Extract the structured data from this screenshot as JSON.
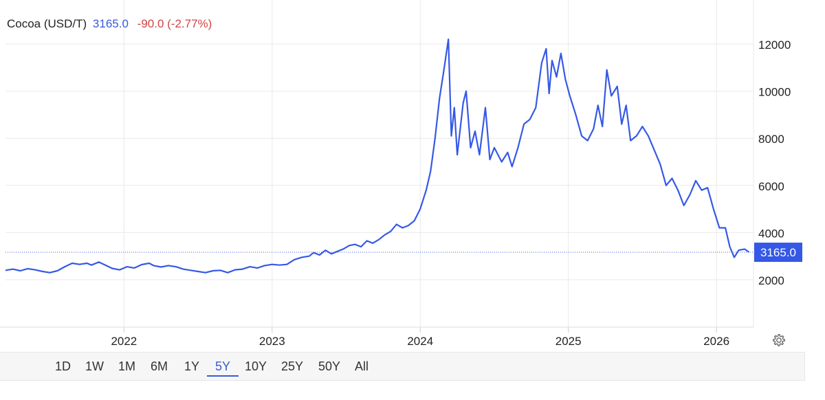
{
  "header": {
    "name": "Cocoa (USD/T)",
    "price": "3165.0",
    "change": "-90.0 (-2.77%)"
  },
  "last_price_label": "3165.0",
  "ranges": [
    "1D",
    "1W",
    "1M",
    "6M",
    "1Y",
    "5Y",
    "10Y",
    "25Y",
    "50Y",
    "All"
  ],
  "active_range": "5Y",
  "colors": {
    "line": "#3558e6",
    "price_text": "#3a5ad9",
    "change_text": "#d24444",
    "price_tag_bg": "#3558e6",
    "grid": "#e9e9e9"
  },
  "icons": {
    "settings": "gear-icon"
  },
  "chart_data": {
    "type": "line",
    "title": "Cocoa (USD/T)",
    "xlabel": "",
    "ylabel": "",
    "xlim": [
      2021.2,
      2026.25
    ],
    "ylim": [
      0,
      13000
    ],
    "x_ticks": [
      "2022",
      "2023",
      "2024",
      "2025",
      "2026"
    ],
    "y_ticks": [
      "2000",
      "4000",
      "6000",
      "8000",
      "10000",
      "12000"
    ],
    "grid": true,
    "last_value": 3165.0,
    "series": [
      {
        "values": [
          [
            2021.2,
            2400
          ],
          [
            2021.25,
            2450
          ],
          [
            2021.3,
            2380
          ],
          [
            2021.35,
            2470
          ],
          [
            2021.4,
            2420
          ],
          [
            2021.45,
            2350
          ],
          [
            2021.5,
            2300
          ],
          [
            2021.55,
            2380
          ],
          [
            2021.6,
            2550
          ],
          [
            2021.65,
            2700
          ],
          [
            2021.7,
            2650
          ],
          [
            2021.75,
            2700
          ],
          [
            2021.78,
            2620
          ],
          [
            2021.83,
            2750
          ],
          [
            2021.88,
            2600
          ],
          [
            2021.92,
            2480
          ],
          [
            2021.97,
            2420
          ],
          [
            2022.02,
            2550
          ],
          [
            2022.07,
            2500
          ],
          [
            2022.12,
            2640
          ],
          [
            2022.17,
            2700
          ],
          [
            2022.2,
            2600
          ],
          [
            2022.25,
            2540
          ],
          [
            2022.3,
            2600
          ],
          [
            2022.35,
            2550
          ],
          [
            2022.4,
            2450
          ],
          [
            2022.45,
            2400
          ],
          [
            2022.5,
            2350
          ],
          [
            2022.55,
            2300
          ],
          [
            2022.6,
            2380
          ],
          [
            2022.65,
            2400
          ],
          [
            2022.7,
            2300
          ],
          [
            2022.75,
            2420
          ],
          [
            2022.8,
            2450
          ],
          [
            2022.85,
            2550
          ],
          [
            2022.9,
            2500
          ],
          [
            2022.95,
            2600
          ],
          [
            2023.0,
            2650
          ],
          [
            2023.05,
            2620
          ],
          [
            2023.1,
            2650
          ],
          [
            2023.15,
            2850
          ],
          [
            2023.2,
            2950
          ],
          [
            2023.25,
            3000
          ],
          [
            2023.28,
            3150
          ],
          [
            2023.32,
            3050
          ],
          [
            2023.36,
            3250
          ],
          [
            2023.4,
            3100
          ],
          [
            2023.44,
            3200
          ],
          [
            2023.48,
            3300
          ],
          [
            2023.52,
            3450
          ],
          [
            2023.56,
            3500
          ],
          [
            2023.6,
            3400
          ],
          [
            2023.64,
            3650
          ],
          [
            2023.68,
            3550
          ],
          [
            2023.72,
            3700
          ],
          [
            2023.76,
            3900
          ],
          [
            2023.8,
            4050
          ],
          [
            2023.84,
            4350
          ],
          [
            2023.88,
            4200
          ],
          [
            2023.92,
            4300
          ],
          [
            2023.96,
            4500
          ],
          [
            2024.0,
            5000
          ],
          [
            2024.04,
            5800
          ],
          [
            2024.07,
            6600
          ],
          [
            2024.1,
            8000
          ],
          [
            2024.13,
            9700
          ],
          [
            2024.16,
            10900
          ],
          [
            2024.19,
            12200
          ],
          [
            2024.21,
            8100
          ],
          [
            2024.23,
            9300
          ],
          [
            2024.25,
            7300
          ],
          [
            2024.29,
            9500
          ],
          [
            2024.31,
            10000
          ],
          [
            2024.34,
            7600
          ],
          [
            2024.37,
            8300
          ],
          [
            2024.4,
            7300
          ],
          [
            2024.44,
            9300
          ],
          [
            2024.47,
            7100
          ],
          [
            2024.5,
            7600
          ],
          [
            2024.55,
            7000
          ],
          [
            2024.59,
            7400
          ],
          [
            2024.62,
            6800
          ],
          [
            2024.66,
            7600
          ],
          [
            2024.7,
            8600
          ],
          [
            2024.74,
            8800
          ],
          [
            2024.78,
            9300
          ],
          [
            2024.82,
            11200
          ],
          [
            2024.85,
            11800
          ],
          [
            2024.87,
            9900
          ],
          [
            2024.89,
            11300
          ],
          [
            2024.92,
            10600
          ],
          [
            2024.95,
            11600
          ],
          [
            2024.98,
            10500
          ],
          [
            2025.01,
            9800
          ],
          [
            2025.05,
            9000
          ],
          [
            2025.09,
            8100
          ],
          [
            2025.13,
            7900
          ],
          [
            2025.17,
            8400
          ],
          [
            2025.2,
            9400
          ],
          [
            2025.23,
            8500
          ],
          [
            2025.26,
            10900
          ],
          [
            2025.29,
            9800
          ],
          [
            2025.33,
            10200
          ],
          [
            2025.36,
            8600
          ],
          [
            2025.39,
            9400
          ],
          [
            2025.42,
            7900
          ],
          [
            2025.46,
            8100
          ],
          [
            2025.5,
            8500
          ],
          [
            2025.54,
            8100
          ],
          [
            2025.58,
            7500
          ],
          [
            2025.62,
            6900
          ],
          [
            2025.66,
            6000
          ],
          [
            2025.7,
            6300
          ],
          [
            2025.74,
            5800
          ],
          [
            2025.78,
            5150
          ],
          [
            2025.82,
            5600
          ],
          [
            2025.86,
            6200
          ],
          [
            2025.9,
            5800
          ],
          [
            2025.94,
            5900
          ],
          [
            2025.98,
            5000
          ],
          [
            2026.02,
            4200
          ],
          [
            2026.06,
            4200
          ],
          [
            2026.09,
            3400
          ],
          [
            2026.12,
            2950
          ],
          [
            2026.15,
            3250
          ],
          [
            2026.19,
            3300
          ],
          [
            2026.22,
            3165
          ]
        ]
      }
    ]
  }
}
